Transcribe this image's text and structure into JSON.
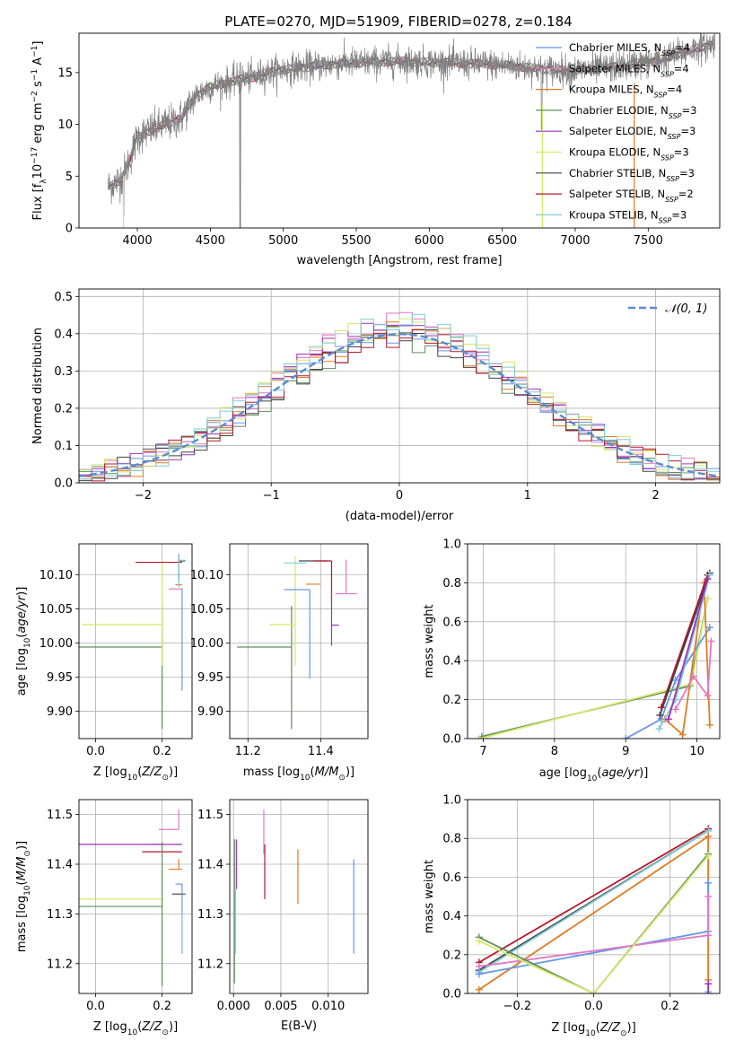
{
  "figure": {
    "title": "PLATE=0270, MJD=51909, FIBERID=0278, z=0.184"
  },
  "chart_data": [
    {
      "id": "spectrum",
      "type": "line",
      "xlabel": "wavelength [Angstrom, rest frame]",
      "ylabel": "Flux [f$_\\lambda$10$^{-17}$ erg cm$^{-2}$ s$^{-1}$ A$^{-1}$]",
      "ylabel_parts": [
        "Flux [f",
        "λ",
        "10",
        "−17",
        " erg cm",
        "−2",
        " s",
        "−1",
        " A",
        "−1",
        "]"
      ],
      "xlim": [
        3600,
        7990
      ],
      "ylim": [
        0,
        18.8
      ],
      "xticks": [
        4000,
        4500,
        5000,
        5500,
        6000,
        6500,
        7000,
        7500
      ],
      "yticks": [
        0,
        5,
        10,
        15
      ],
      "grid": false,
      "legend_placement": "right",
      "continuum": {
        "x": [
          3800,
          3850,
          3900,
          3950,
          4000,
          4100,
          4200,
          4300,
          4400,
          4500,
          4600,
          4700,
          4800,
          4900,
          5000,
          5200,
          5400,
          5600,
          5800,
          6000,
          6200,
          6400,
          6600,
          6800,
          7000,
          7200,
          7400,
          7600,
          7800,
          7950
        ],
        "y": [
          4.0,
          4.3,
          5.0,
          6.6,
          8.8,
          9.5,
          10.0,
          10.6,
          12.8,
          13.6,
          14.0,
          14.3,
          14.6,
          15.0,
          15.3,
          15.6,
          15.9,
          16.0,
          16.1,
          16.0,
          15.9,
          15.8,
          15.6,
          15.3,
          15.2,
          15.4,
          15.8,
          16.3,
          17.2,
          17.8
        ]
      },
      "legend": [
        {
          "label": "Chabrier MILES, N",
          "sub": "SSP",
          "tail": "=4",
          "color": "#6495ed"
        },
        {
          "label": "Salpeter MILES, N",
          "sub": "SSP",
          "tail": "=4",
          "color": "#e377c2"
        },
        {
          "label": "Kroupa MILES, N",
          "sub": "SSP",
          "tail": "=4",
          "color": "#e07b25"
        },
        {
          "label": "Chabrier ELODIE, N",
          "sub": "SSP",
          "tail": "=3",
          "color": "#5d8f5d"
        },
        {
          "label": "Salpeter ELODIE, N",
          "sub": "SSP",
          "tail": "=3",
          "color": "#9b30c0"
        },
        {
          "label": "Kroupa ELODIE, N",
          "sub": "SSP",
          "tail": "=3",
          "color": "#d5e86a"
        },
        {
          "label": "Chabrier STELIB, N",
          "sub": "SSP",
          "tail": "=3",
          "color": "#444444"
        },
        {
          "label": "Salpeter STELIB, N",
          "sub": "SSP",
          "tail": "=2",
          "color": "#b2182b"
        },
        {
          "label": "Kroupa STELIB, N",
          "sub": "SSP",
          "tail": "=3",
          "color": "#80cbd6"
        }
      ]
    },
    {
      "id": "residuals",
      "type": "line",
      "xlabel": "(data-model)/error",
      "ylabel": "Normed distribution",
      "xlim": [
        -2.5,
        2.5
      ],
      "ylim": [
        0,
        0.52
      ],
      "xticks": [
        -2,
        -1,
        0,
        1,
        2
      ],
      "yticks": [
        0.0,
        0.1,
        0.2,
        0.3,
        0.4,
        0.5
      ],
      "grid": true,
      "legend_placement": "top-right",
      "gaussian_label": "𝒩(0, 1)",
      "gaussian_color": "#5b8bd0"
    },
    {
      "id": "age-vs-Z",
      "type": "scatter",
      "xlabel": "Z [log$_{10}$(Z/Z$_\\odot$)]",
      "ylabel": "age  [log$_{10}$(age/yr)]",
      "xlim": [
        -0.05,
        0.29
      ],
      "ylim": [
        9.86,
        10.145
      ],
      "xticks": [
        0.0,
        0.2
      ],
      "yticks": [
        9.9,
        9.95,
        10.0,
        10.05,
        10.1
      ],
      "grid": true,
      "points": [
        {
          "x": 0.22,
          "xerr": [
            0.0,
            0.04
          ],
          "y": 10.079,
          "yerr": [
            0.0,
            0.0
          ],
          "color": "#e377c2"
        },
        {
          "x": 0.26,
          "xerr": [
            0.0,
            0.0
          ],
          "y": 10.08,
          "yerr": [
            0.15,
            0.0
          ],
          "color": "#6495ed"
        },
        {
          "x": 0.24,
          "xerr": [
            0.0,
            0.02
          ],
          "y": 10.085,
          "yerr": [
            0.0,
            0.0
          ],
          "color": "#e07b25"
        },
        {
          "x": 0.2,
          "xerr": [
            0.32,
            0.0
          ],
          "y": 9.994,
          "yerr": [
            0.12,
            0.06
          ],
          "color": "#5d8f5d"
        },
        {
          "x": 0.2,
          "xerr": [
            0.24,
            0.0
          ],
          "y": 10.027,
          "yerr": [
            0.06,
            0.09
          ],
          "color": "#d5e86a"
        },
        {
          "x": 0.12,
          "xerr": [
            0.0,
            0.14
          ],
          "y": 10.118,
          "yerr": [
            0.0,
            0.0
          ],
          "color": "#b2182b"
        },
        {
          "x": 0.25,
          "xerr": [
            0.0,
            0.02
          ],
          "y": 10.12,
          "yerr": [
            0.03,
            0.01
          ],
          "color": "#444444"
        },
        {
          "x": 0.25,
          "xerr": [
            0.0,
            0.02
          ],
          "y": 10.121,
          "yerr": [
            0.04,
            0.01
          ],
          "color": "#80cbd6"
        }
      ]
    },
    {
      "id": "age-vs-mass",
      "type": "scatter",
      "xlabel": "mass [log$_{10}$(M/M$_\\odot$)]",
      "ylabel": "",
      "xlim": [
        11.15,
        11.53
      ],
      "ylim": [
        9.86,
        10.145
      ],
      "xticks": [
        11.2,
        11.4
      ],
      "yticks": [
        9.9,
        9.95,
        10.0,
        10.05,
        10.1
      ],
      "grid": true,
      "points": [
        {
          "x": 11.32,
          "xerr": [
            0.15,
            0.0
          ],
          "y": 9.994,
          "yerr": [
            0.12,
            0.06
          ],
          "color": "#5d8f5d"
        },
        {
          "x": 11.33,
          "xerr": [
            0.07,
            0.0
          ],
          "y": 10.027,
          "yerr": [
            0.06,
            0.1
          ],
          "color": "#d5e86a"
        },
        {
          "x": 11.37,
          "xerr": [
            0.07,
            0.0
          ],
          "y": 10.078,
          "yerr": [
            0.13,
            0.0
          ],
          "color": "#6495ed"
        },
        {
          "x": 11.36,
          "xerr": [
            0.06,
            0.0
          ],
          "y": 10.117,
          "yerr": [
            0.0,
            0.0
          ],
          "color": "#80cbd6"
        },
        {
          "x": 11.39,
          "xerr": [
            0.05,
            0.03
          ],
          "y": 10.12,
          "yerr": [
            0.0,
            0.0
          ],
          "color": "#444444"
        },
        {
          "x": 11.43,
          "xerr": [
            0.05,
            0.0
          ],
          "y": 10.12,
          "yerr": [
            0.06,
            0.0
          ],
          "color": "#b2182b"
        },
        {
          "x": 11.43,
          "xerr": [
            0.0,
            0.02
          ],
          "y": 10.026,
          "yerr": [
            0.03,
            0.05
          ],
          "color": "#9b30c0"
        },
        {
          "x": 11.4,
          "xerr": [
            0.04,
            0.0
          ],
          "y": 10.086,
          "yerr": [
            0.0,
            0.0
          ],
          "color": "#e07b25"
        },
        {
          "x": 11.47,
          "xerr": [
            0.03,
            0.03
          ],
          "y": 10.072,
          "yerr": [
            0.0,
            0.05
          ],
          "color": "#e377c2"
        }
      ]
    },
    {
      "id": "massweight-vs-age",
      "type": "line",
      "xlabel": "age  [log$_{10}$(age/yr)]",
      "ylabel": "mass weight",
      "xlim": [
        6.78,
        10.32
      ],
      "ylim": [
        0,
        1.0
      ],
      "xticks": [
        7,
        8,
        9,
        10
      ],
      "yticks": [
        0.0,
        0.2,
        0.4,
        0.6,
        0.8,
        1.0
      ],
      "grid": true,
      "series": [
        {
          "color": "#5d8f5d",
          "x": [
            6.98,
            9.9,
            10.15
          ],
          "y": [
            0.01,
            0.27,
            0.72
          ]
        },
        {
          "color": "#d5e86a",
          "x": [
            6.95,
            9.92,
            10.15
          ],
          "y": [
            0.0,
            0.28,
            0.72
          ]
        },
        {
          "color": "#6495ed",
          "x": [
            9.0,
            9.5,
            9.7,
            10.18
          ],
          "y": [
            0.0,
            0.1,
            0.3,
            0.57
          ]
        },
        {
          "color": "#e07b25",
          "x": [
            9.55,
            9.8,
            10.1,
            10.18
          ],
          "y": [
            0.1,
            0.02,
            0.8,
            0.07
          ]
        },
        {
          "color": "#e377c2",
          "x": [
            9.7,
            9.95,
            10.15,
            10.2
          ],
          "y": [
            0.15,
            0.32,
            0.22,
            0.5
          ]
        },
        {
          "color": "#b2182b",
          "x": [
            9.5,
            10.15
          ],
          "y": [
            0.16,
            0.84
          ]
        },
        {
          "color": "#444444",
          "x": [
            9.48,
            10.18
          ],
          "y": [
            0.12,
            0.85
          ]
        },
        {
          "color": "#80cbd6",
          "x": [
            9.47,
            9.7,
            10.18
          ],
          "y": [
            0.05,
            0.2,
            0.84
          ]
        },
        {
          "color": "#9b30c0",
          "x": [
            9.6,
            10.15
          ],
          "y": [
            0.1,
            0.82
          ]
        }
      ]
    },
    {
      "id": "mass-vs-Z",
      "type": "scatter",
      "xlabel": "Z [log$_{10}$(Z/Z$_\\odot$)]",
      "ylabel": "mass [log$_{10}$(M/M$_\\odot$)]",
      "xlim": [
        -0.05,
        0.29
      ],
      "ylim": [
        11.14,
        11.53
      ],
      "xticks": [
        0.0,
        0.2
      ],
      "yticks": [
        11.2,
        11.3,
        11.4,
        11.5
      ],
      "grid": true,
      "points": [
        {
          "x": 0.2,
          "xerr": [
            0.03,
            0.06
          ],
          "y": 11.44,
          "yerr": [
            0.0,
            0.0
          ],
          "color": "#9b30c0"
        },
        {
          "x": 0.2,
          "xerr": [
            0.25,
            0.0
          ],
          "y": 11.44,
          "yerr": [
            0.0,
            0.0
          ],
          "color": "#9b30c0"
        },
        {
          "x": 0.22,
          "xerr": [
            0.08,
            0.04
          ],
          "y": 11.425,
          "yerr": [
            0.0,
            0.0
          ],
          "color": "#b2182b"
        },
        {
          "x": 0.25,
          "xerr": [
            0.06,
            0.0
          ],
          "y": 11.47,
          "yerr": [
            0.0,
            0.04
          ],
          "color": "#e377c2"
        },
        {
          "x": 0.25,
          "xerr": [
            0.03,
            0.01
          ],
          "y": 11.39,
          "yerr": [
            0.0,
            0.02
          ],
          "color": "#e07b25"
        },
        {
          "x": 0.2,
          "xerr": [
            0.25,
            0.0
          ],
          "y": 11.33,
          "yerr": [
            0.02,
            0.0
          ],
          "color": "#d5e86a"
        },
        {
          "x": 0.2,
          "xerr": [
            0.3,
            0.0
          ],
          "y": 11.315,
          "yerr": [
            0.16,
            0.13
          ],
          "color": "#5d8f5d"
        },
        {
          "x": 0.26,
          "xerr": [
            0.03,
            0.01
          ],
          "y": 11.34,
          "yerr": [
            0.0,
            0.0
          ],
          "color": "#444444"
        },
        {
          "x": 0.26,
          "xerr": [
            0.02,
            0.0
          ],
          "y": 11.36,
          "yerr": [
            0.14,
            0.0
          ],
          "color": "#6495ed"
        },
        {
          "x": 0.26,
          "xerr": [
            0.0,
            0.0
          ],
          "y": 11.3,
          "yerr": [
            0.08,
            0.0
          ],
          "color": "#80cbd6"
        }
      ]
    },
    {
      "id": "mass-vs-EBV",
      "type": "scatter",
      "xlabel": "E(B-V)",
      "ylabel": "",
      "xlim": [
        -0.0004,
        0.0142
      ],
      "ylim": [
        11.14,
        11.53
      ],
      "xticks": [
        0.0,
        0.005,
        0.01
      ],
      "yticks": [
        11.2,
        11.3,
        11.4,
        11.5
      ],
      "grid": true,
      "points": [
        {
          "x": 0.0001,
          "y": 11.3,
          "yerr": [
            0.14,
            0.15
          ],
          "color": "#5d8f5d"
        },
        {
          "x": 0.0003,
          "y": 11.4,
          "yerr": [
            0.05,
            0.05
          ],
          "color": "#9b30c0"
        },
        {
          "x": 0.0002,
          "y": 11.3,
          "yerr": [
            0.08,
            0.05
          ],
          "color": "#80cbd6"
        },
        {
          "x": 0.0033,
          "y": 11.38,
          "yerr": [
            0.05,
            0.06
          ],
          "color": "#b2182b"
        },
        {
          "x": 0.0032,
          "y": 11.45,
          "yerr": [
            0.03,
            0.06
          ],
          "color": "#e377c2"
        },
        {
          "x": 0.0068,
          "y": 11.375,
          "yerr": [
            0.055,
            0.055
          ],
          "color": "#e07b25"
        },
        {
          "x": 0.0127,
          "y": 11.31,
          "yerr": [
            0.09,
            0.1
          ],
          "color": "#6495ed"
        }
      ]
    },
    {
      "id": "massweight-vs-Z",
      "type": "line",
      "xlabel": "Z [log$_{10}$(Z/Z$_\\odot$)]",
      "ylabel": "mass weight",
      "xlim": [
        -0.33,
        0.33
      ],
      "ylim": [
        0,
        1.0
      ],
      "xticks": [
        -0.2,
        0.0,
        0.2
      ],
      "yticks": [
        0.0,
        0.2,
        0.4,
        0.6,
        0.8,
        1.0
      ],
      "grid": true,
      "series": [
        {
          "color": "#b2182b",
          "x": [
            -0.3,
            0.3
          ],
          "y": [
            0.16,
            0.85
          ]
        },
        {
          "color": "#444444",
          "x": [
            -0.3,
            0.3
          ],
          "y": [
            0.12,
            0.84
          ]
        },
        {
          "color": "#80cbd6",
          "x": [
            -0.3,
            0.3,
            0.3
          ],
          "y": [
            0.11,
            0.84,
            0.01
          ]
        },
        {
          "color": "#e07b25",
          "x": [
            -0.3,
            0.3,
            0.3
          ],
          "y": [
            0.02,
            0.81,
            0.07
          ]
        },
        {
          "color": "#6495ed",
          "x": [
            -0.3,
            0.3,
            0.3
          ],
          "y": [
            0.1,
            0.32,
            0.57
          ]
        },
        {
          "color": "#e377c2",
          "x": [
            -0.3,
            0.3,
            0.3
          ],
          "y": [
            0.14,
            0.3,
            0.5
          ]
        },
        {
          "color": "#5d8f5d",
          "x": [
            -0.3,
            0.0,
            0.3
          ],
          "y": [
            0.29,
            0.0,
            0.72
          ]
        },
        {
          "color": "#d5e86a",
          "x": [
            -0.3,
            0.0,
            0.3
          ],
          "y": [
            0.27,
            0.0,
            0.71
          ]
        },
        {
          "color": "#9b30c0",
          "x": [
            0.3,
            0.3
          ],
          "y": [
            0.0,
            0.05
          ]
        }
      ]
    }
  ]
}
